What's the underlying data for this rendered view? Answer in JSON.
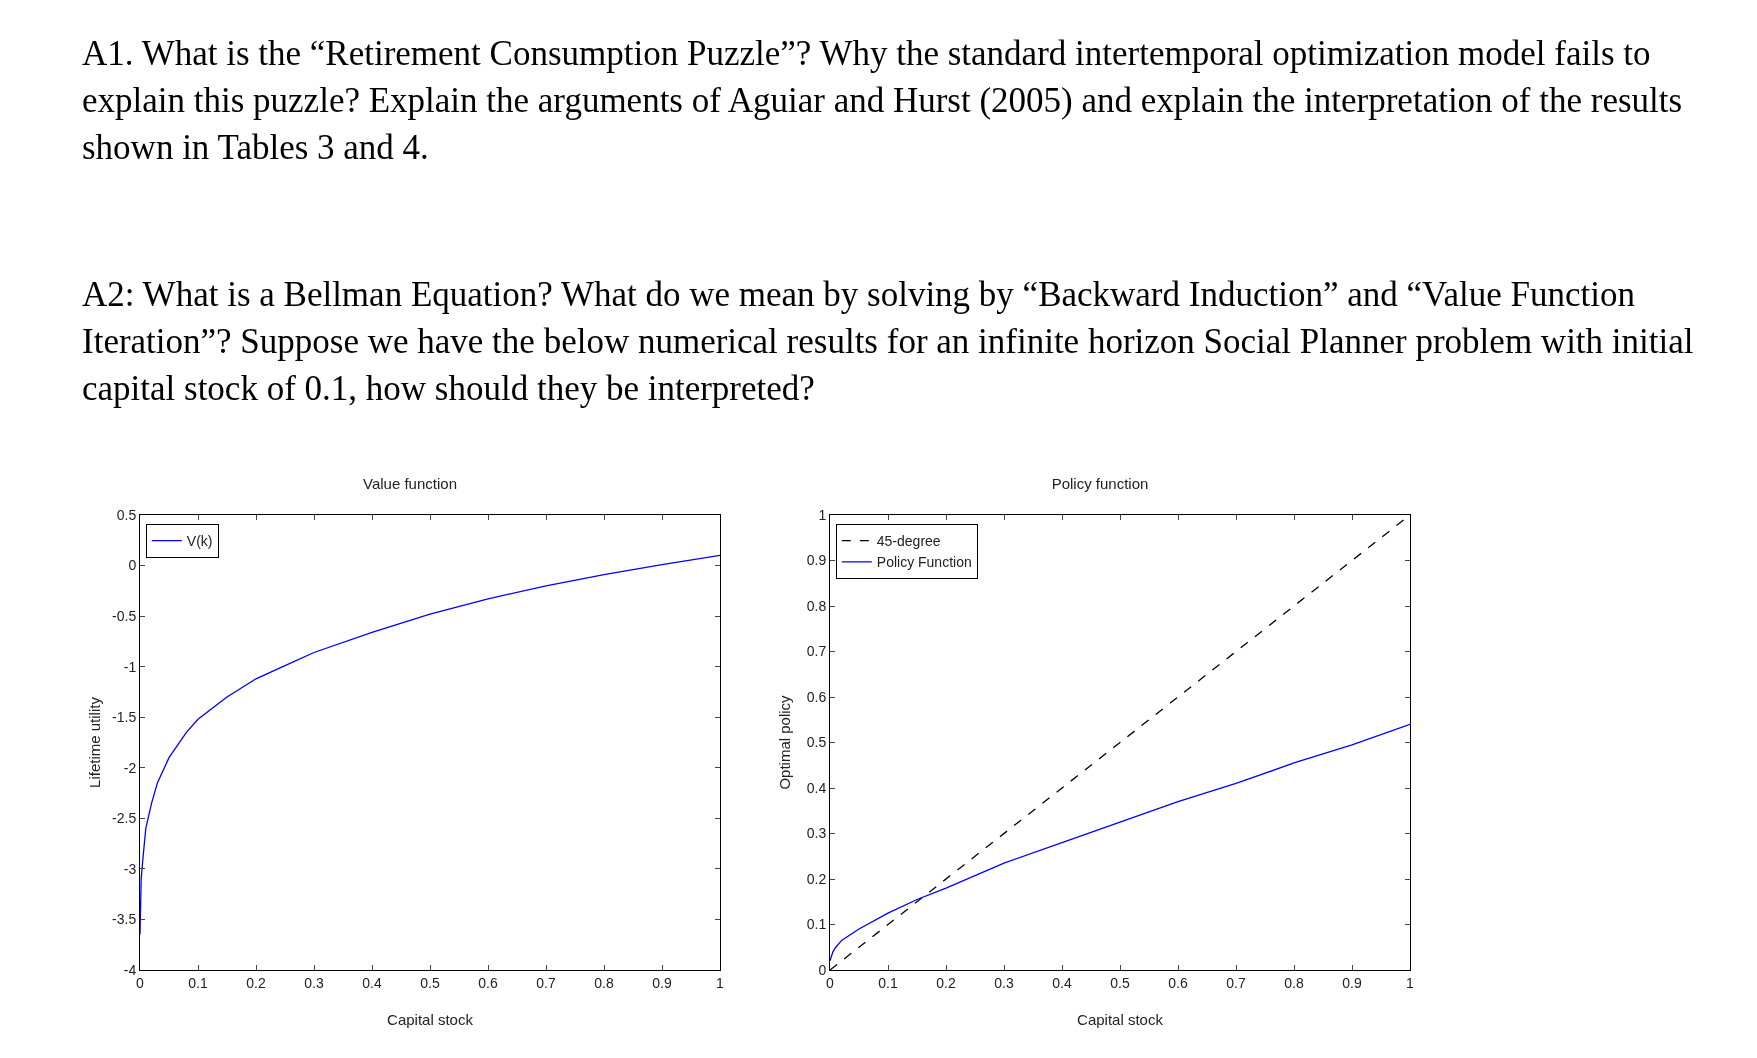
{
  "chart_data": [
    {
      "type": "line",
      "title": "Value function",
      "xlabel": "Capital stock",
      "ylabel": "Lifetime utility",
      "annotations": [
        "A1.  What is the “Retirement Consumption Puzzle”?  Why the standard intertemporal optimization model fails to explain this puzzle?  Explain the arguments of Aguiar and Hurst (2005) and explain the interpretation of the results shown in Tables 3 and 4.",
        "A2:  What is a Bellman Equation?  What do we mean by solving by “Backward Induction” and “Value Function Iteration”?   Suppose we have the below numerical results for an infinite horizon Social Planner problem with initial capital stock of 0.1, how should they be interpreted?"
      ],
      "series": [
        {
          "name": "V(k)",
          "color": "#0000ff",
          "x": [
            0,
            0.002,
            0.005,
            0.01,
            0.02,
            0.03,
            0.05,
            0.08,
            0.1,
            0.15,
            0.2,
            0.25,
            0.3,
            0.4,
            0.5,
            0.6,
            0.7,
            0.8,
            0.9,
            1.0
          ],
          "values": [
            -3.65,
            -3.1,
            -2.9,
            -2.6,
            -2.35,
            -2.15,
            -1.9,
            -1.65,
            -1.52,
            -1.3,
            -1.12,
            -0.99,
            -0.86,
            -0.66,
            -0.48,
            -0.33,
            -0.2,
            -0.09,
            0.01,
            0.1
          ]
        }
      ],
      "xlim": [
        0,
        1
      ],
      "xticks": [
        0,
        0.1,
        0.2,
        0.3,
        0.4,
        0.5,
        0.6,
        0.7,
        0.8,
        0.9,
        1
      ],
      "ylim": [
        -4,
        0.5
      ],
      "yticks": [
        -4,
        -3.5,
        -3,
        -2.5,
        -2,
        -1.5,
        -1,
        -0.5,
        0,
        0.5
      ],
      "grid": false,
      "legend": "top left"
    },
    {
      "type": "line",
      "title": "Policy function",
      "xlabel": "Capital stock",
      "ylabel": "Optimal policy",
      "series": [
        {
          "name": "45-degree",
          "color": "#000000",
          "line_style": "dashed",
          "x": [
            0,
            1
          ],
          "values": [
            0,
            1
          ]
        },
        {
          "name": "Policy Function",
          "color": "#0000ff",
          "x": [
            0,
            0.005,
            0.01,
            0.02,
            0.05,
            0.1,
            0.15,
            0.2,
            0.3,
            0.4,
            0.5,
            0.6,
            0.7,
            0.8,
            0.9,
            1.0
          ],
          "values": [
            0.02,
            0.04,
            0.05,
            0.065,
            0.09,
            0.125,
            0.155,
            0.18,
            0.235,
            0.28,
            0.325,
            0.37,
            0.41,
            0.455,
            0.495,
            0.54
          ]
        }
      ],
      "xlim": [
        0,
        1
      ],
      "xticks": [
        0,
        0.1,
        0.2,
        0.3,
        0.4,
        0.5,
        0.6,
        0.7,
        0.8,
        0.9,
        1
      ],
      "ylim": [
        0,
        1
      ],
      "yticks": [
        0,
        0.1,
        0.2,
        0.3,
        0.4,
        0.5,
        0.6,
        0.7,
        0.8,
        0.9,
        1
      ],
      "grid": false,
      "legend": "top left"
    }
  ]
}
